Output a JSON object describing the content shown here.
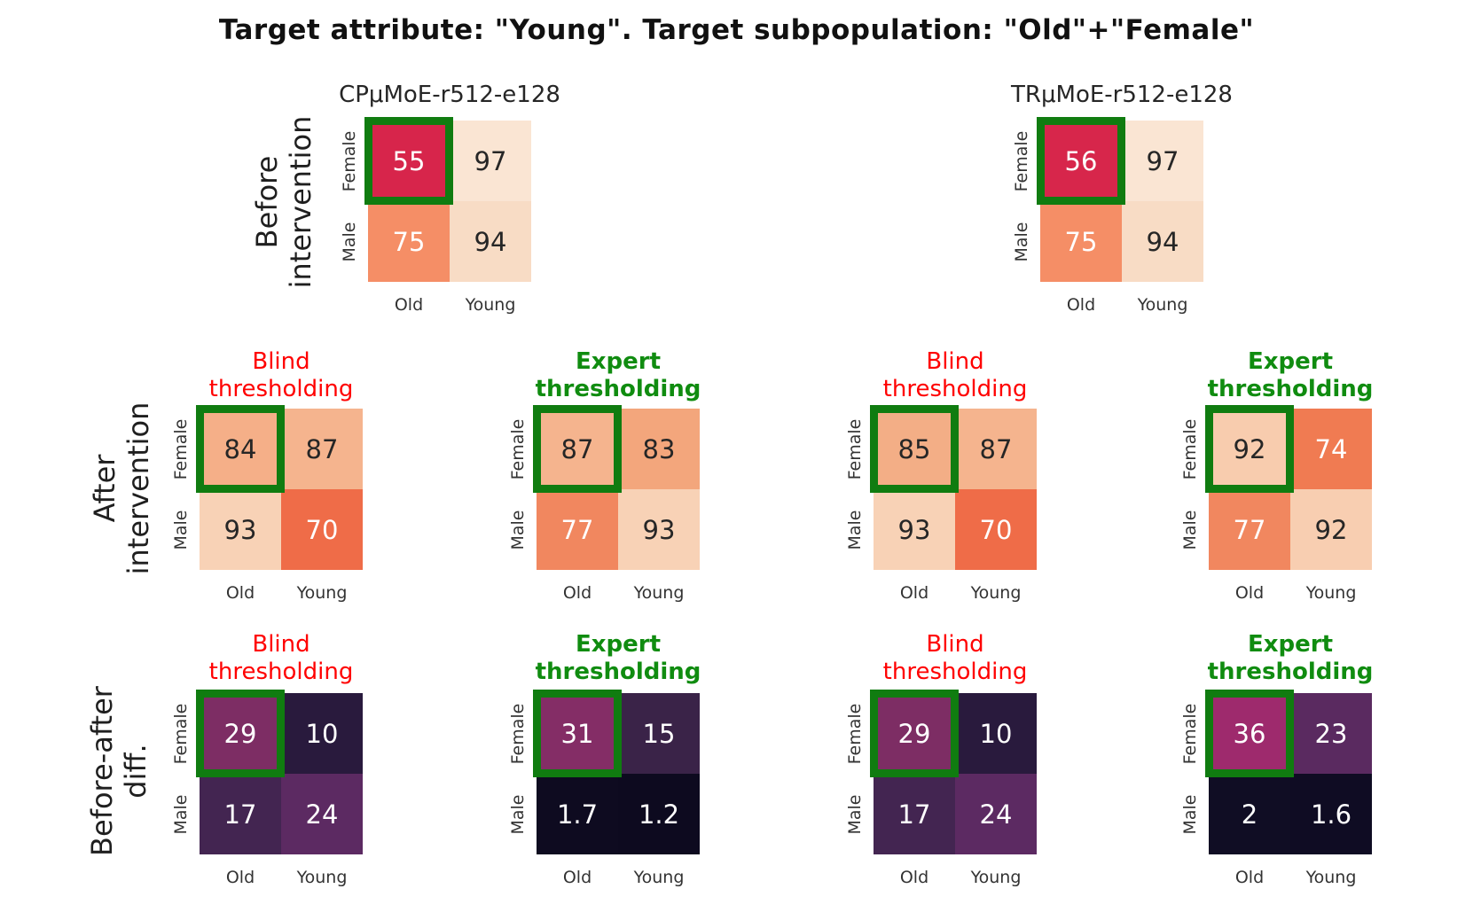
{
  "colors": {
    "figure_title_text": "#111111",
    "model_title_text": "#262626",
    "blind_title": "#ff0000",
    "expert_title": "#108c10",
    "highlight_border": "#107c10",
    "cell_text_light": "#ffffff",
    "cell_text_dark": "#262626",
    "tick_label": "#333333"
  },
  "chart_data": {
    "type": "heatmap",
    "title": "Target attribute: \"Young\". Target subpopulation: \"Old\"+\"Female\"",
    "x_categories": [
      "Old",
      "Young"
    ],
    "y_categories": [
      "Female",
      "Male"
    ],
    "highlighted_cell": {
      "row": "Female",
      "col": "Old"
    },
    "legend_position": "none",
    "panel_rows": [
      {
        "row_label": [
          "Before",
          "intervention"
        ],
        "panels": [
          {
            "column_title": [
              "CPμMoE-r512-e128"
            ],
            "title_style": "model",
            "values": [
              [
                55,
                97
              ],
              [
                75,
                94
              ]
            ],
            "cell_colors": [
              [
                "#d7254b",
                "#fae5d3"
              ],
              [
                "#f58e66",
                "#f8dcc5"
              ]
            ]
          },
          {
            "column_title": [
              "TRμMoE-r512-e128"
            ],
            "title_style": "model",
            "values": [
              [
                56,
                97
              ],
              [
                75,
                94
              ]
            ],
            "cell_colors": [
              [
                "#d7264b",
                "#fae5d3"
              ],
              [
                "#f58e66",
                "#f8dcc5"
              ]
            ]
          }
        ]
      },
      {
        "row_label": [
          "After",
          "intervention"
        ],
        "panels": [
          {
            "column_title": [
              "Blind",
              "thresholding"
            ],
            "title_style": "blind",
            "values": [
              [
                84,
                87
              ],
              [
                93,
                70
              ]
            ],
            "cell_colors": [
              [
                "#f5af88",
                "#f5b48e"
              ],
              [
                "#f8d2b6",
                "#ef6c48"
              ]
            ]
          },
          {
            "column_title": [
              "Expert",
              "thresholding"
            ],
            "title_style": "expert",
            "values": [
              [
                87,
                83
              ],
              [
                77,
                93
              ]
            ],
            "cell_colors": [
              [
                "#f5b48e",
                "#f3a67c"
              ],
              [
                "#f1875f",
                "#f8d2b6"
              ]
            ]
          },
          {
            "column_title": [
              "Blind",
              "thresholding"
            ],
            "title_style": "blind",
            "values": [
              [
                85,
                87
              ],
              [
                93,
                70
              ]
            ],
            "cell_colors": [
              [
                "#f3ae86",
                "#f5b48e"
              ],
              [
                "#f8d2b6",
                "#ef6c48"
              ]
            ]
          },
          {
            "column_title": [
              "Expert",
              "thresholding"
            ],
            "title_style": "expert",
            "values": [
              [
                92,
                74
              ],
              [
                77,
                92
              ]
            ],
            "cell_colors": [
              [
                "#f8ccae",
                "#f07b52"
              ],
              [
                "#f1875f",
                "#f8ceb1"
              ]
            ]
          }
        ]
      },
      {
        "row_label": [
          "Before-after",
          "diff."
        ],
        "panels": [
          {
            "column_title": [
              "Blind",
              "thresholding"
            ],
            "title_style": "blind",
            "values": [
              [
                29,
                10
              ],
              [
                17,
                24
              ]
            ],
            "cell_colors": [
              [
                "#7d2d64",
                "#291a3d"
              ],
              [
                "#432551",
                "#5c2a62"
              ]
            ]
          },
          {
            "column_title": [
              "Expert",
              "thresholding"
            ],
            "title_style": "expert",
            "values": [
              [
                31,
                15
              ],
              [
                1.7,
                1.2
              ]
            ],
            "cell_colors": [
              [
                "#842d66",
                "#3a2348"
              ],
              [
                "#0e0b20",
                "#0d0a1f"
              ]
            ]
          },
          {
            "column_title": [
              "Blind",
              "thresholding"
            ],
            "title_style": "blind",
            "values": [
              [
                29,
                10
              ],
              [
                17,
                24
              ]
            ],
            "cell_colors": [
              [
                "#7d2d64",
                "#291a3d"
              ],
              [
                "#432551",
                "#5c2a62"
              ]
            ]
          },
          {
            "column_title": [
              "Expert",
              "thresholding"
            ],
            "title_style": "expert",
            "values": [
              [
                36,
                23
              ],
              [
                2,
                1.6
              ]
            ],
            "cell_colors": [
              [
                "#9e2a6d",
                "#5a2a60"
              ],
              [
                "#100d24",
                "#0f0c23"
              ]
            ]
          }
        ]
      }
    ]
  }
}
